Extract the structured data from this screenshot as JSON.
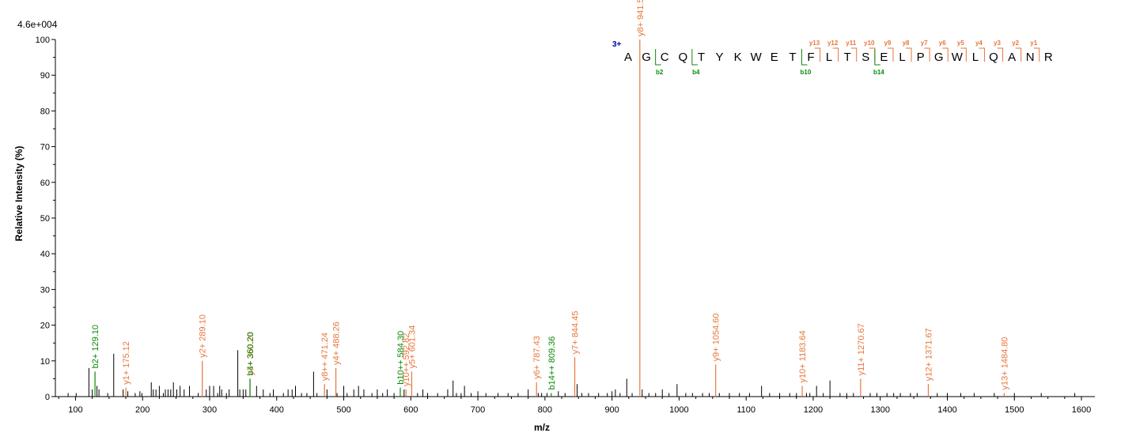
{
  "colors": {
    "y_ion": "#e8763a",
    "b_ion": "#0a8a0a",
    "noise": "#000000",
    "charge": "#0000b0",
    "axis": "#000000"
  },
  "chart_data": {
    "type": "bar",
    "scale_label": "4.6e+004",
    "xlabel": "m/z",
    "ylabel": "Relative   Intensity (%)",
    "xlim": [
      70,
      1620
    ],
    "ylim": [
      0,
      100
    ],
    "xticks": [
      100,
      200,
      300,
      400,
      500,
      600,
      700,
      800,
      900,
      1000,
      1100,
      1200,
      1300,
      1400,
      1500,
      1600
    ],
    "yticks": [
      0,
      10,
      20,
      30,
      40,
      50,
      60,
      70,
      80,
      90,
      100
    ],
    "annotated_peaks": [
      {
        "mz": 129.1,
        "intensity": 7,
        "label": "b2+ 129.10",
        "ion": "b"
      },
      {
        "mz": 175.12,
        "intensity": 2.5,
        "label": "y1+ 175.12",
        "ion": "y"
      },
      {
        "mz": 289.1,
        "intensity": 10,
        "label": "y2+ 289.10",
        "ion": "y"
      },
      {
        "mz": 360.2,
        "intensity": 5,
        "label": "y3+ 360.20",
        "ion": "y"
      },
      {
        "mz": 360.2,
        "intensity": 5,
        "label": "b4+ 360.20",
        "ion": "b"
      },
      {
        "mz": 471.24,
        "intensity": 3.5,
        "label": "y8++ 471.24",
        "ion": "y"
      },
      {
        "mz": 488.26,
        "intensity": 8,
        "label": "y4+ 488.26",
        "ion": "y"
      },
      {
        "mz": 584.3,
        "intensity": 2.5,
        "label": "b10++ 584.30",
        "ion": "b"
      },
      {
        "mz": 592.82,
        "intensity": 2,
        "label": "y10++ 592.82",
        "ion": "y"
      },
      {
        "mz": 601.34,
        "intensity": 7,
        "label": "y5+ 601.34",
        "ion": "y"
      },
      {
        "mz": 787.43,
        "intensity": 4,
        "label": "y6+ 787.43",
        "ion": "y"
      },
      {
        "mz": 809.36,
        "intensity": 1,
        "label": "b14++ 809.36",
        "ion": "b"
      },
      {
        "mz": 844.45,
        "intensity": 11,
        "label": "y7+ 844.45",
        "ion": "y"
      },
      {
        "mz": 941.5,
        "intensity": 100,
        "label": "y8+ 941.50",
        "ion": "y"
      },
      {
        "mz": 1054.6,
        "intensity": 9,
        "label": "y9+ 1054.60",
        "ion": "y"
      },
      {
        "mz": 1183.64,
        "intensity": 3,
        "label": "y10+ 1183.64",
        "ion": "y"
      },
      {
        "mz": 1270.67,
        "intensity": 5,
        "label": "y11+ 1270.67",
        "ion": "y"
      },
      {
        "mz": 1371.67,
        "intensity": 3.5,
        "label": "y12+ 1371.67",
        "ion": "y"
      },
      {
        "mz": 1484.8,
        "intensity": 1,
        "label": "y13+ 1484.80",
        "ion": "y"
      }
    ],
    "noise_peaks": [
      [
        89,
        1
      ],
      [
        101,
        1
      ],
      [
        120,
        8
      ],
      [
        125,
        2
      ],
      [
        132,
        3
      ],
      [
        135,
        2
      ],
      [
        148,
        1
      ],
      [
        157,
        12
      ],
      [
        171,
        2
      ],
      [
        178,
        1.5
      ],
      [
        189,
        1
      ],
      [
        196,
        1.5
      ],
      [
        199,
        1
      ],
      [
        213,
        4
      ],
      [
        216,
        2
      ],
      [
        220,
        2
      ],
      [
        225,
        3
      ],
      [
        231,
        1
      ],
      [
        234,
        2
      ],
      [
        238,
        2
      ],
      [
        242,
        2
      ],
      [
        246,
        4
      ],
      [
        251,
        2
      ],
      [
        256,
        3
      ],
      [
        262,
        2
      ],
      [
        270,
        3
      ],
      [
        283,
        1
      ],
      [
        295,
        2
      ],
      [
        300,
        3
      ],
      [
        306,
        3
      ],
      [
        312,
        1
      ],
      [
        315,
        3
      ],
      [
        318,
        2
      ],
      [
        325,
        1
      ],
      [
        329,
        2
      ],
      [
        342,
        13
      ],
      [
        345,
        2
      ],
      [
        350,
        2
      ],
      [
        354,
        2
      ],
      [
        370,
        3
      ],
      [
        380,
        2
      ],
      [
        390,
        1
      ],
      [
        395,
        2
      ],
      [
        410,
        1
      ],
      [
        417,
        2
      ],
      [
        423,
        2
      ],
      [
        428,
        3
      ],
      [
        437,
        1
      ],
      [
        445,
        1
      ],
      [
        455,
        7
      ],
      [
        460,
        1
      ],
      [
        475,
        2
      ],
      [
        490,
        1
      ],
      [
        500,
        3
      ],
      [
        505,
        1
      ],
      [
        515,
        2
      ],
      [
        522,
        3
      ],
      [
        530,
        2
      ],
      [
        542,
        1
      ],
      [
        550,
        2
      ],
      [
        558,
        1
      ],
      [
        565,
        2
      ],
      [
        575,
        1
      ],
      [
        590,
        2
      ],
      [
        610,
        1
      ],
      [
        618,
        2
      ],
      [
        625,
        1
      ],
      [
        640,
        1
      ],
      [
        655,
        2
      ],
      [
        663,
        4.5
      ],
      [
        668,
        1
      ],
      [
        675,
        1
      ],
      [
        680,
        3
      ],
      [
        690,
        1
      ],
      [
        700,
        1.5
      ],
      [
        712,
        1
      ],
      [
        730,
        1
      ],
      [
        745,
        1
      ],
      [
        760,
        1
      ],
      [
        775,
        2
      ],
      [
        790,
        1
      ],
      [
        795,
        1
      ],
      [
        803,
        1
      ],
      [
        820,
        1.5
      ],
      [
        830,
        1
      ],
      [
        848,
        3.5
      ],
      [
        855,
        1
      ],
      [
        865,
        1
      ],
      [
        880,
        1
      ],
      [
        893,
        1
      ],
      [
        900,
        1.5
      ],
      [
        905,
        2
      ],
      [
        912,
        1
      ],
      [
        922,
        5
      ],
      [
        930,
        1
      ],
      [
        945,
        2
      ],
      [
        955,
        1
      ],
      [
        965,
        1
      ],
      [
        975,
        2
      ],
      [
        985,
        1
      ],
      [
        997,
        3.5
      ],
      [
        1010,
        1
      ],
      [
        1020,
        1
      ],
      [
        1035,
        1
      ],
      [
        1045,
        1
      ],
      [
        1060,
        1
      ],
      [
        1075,
        1
      ],
      [
        1090,
        1
      ],
      [
        1105,
        1
      ],
      [
        1123,
        3
      ],
      [
        1135,
        1
      ],
      [
        1150,
        1
      ],
      [
        1165,
        1
      ],
      [
        1175,
        1
      ],
      [
        1190,
        1
      ],
      [
        1195,
        1
      ],
      [
        1205,
        3
      ],
      [
        1215,
        1
      ],
      [
        1225,
        4.5
      ],
      [
        1240,
        1
      ],
      [
        1250,
        1
      ],
      [
        1260,
        1
      ],
      [
        1285,
        1
      ],
      [
        1295,
        1
      ],
      [
        1310,
        1
      ],
      [
        1320,
        1
      ],
      [
        1330,
        1
      ],
      [
        1345,
        1
      ],
      [
        1355,
        1
      ],
      [
        1385,
        1
      ],
      [
        1400,
        1
      ],
      [
        1420,
        1
      ],
      [
        1440,
        1
      ],
      [
        1470,
        1
      ],
      [
        1500,
        1
      ],
      [
        1540,
        1
      ],
      [
        1590,
        1
      ]
    ]
  },
  "sequence": {
    "charge": "3+",
    "residues": [
      "A",
      "G",
      "C",
      "Q",
      "T",
      "Y",
      "K",
      "W",
      "E",
      "T",
      "F",
      "L",
      "T",
      "S",
      "E",
      "L",
      "P",
      "G",
      "W",
      "L",
      "Q",
      "A",
      "N",
      "R"
    ],
    "y_ions": [
      {
        "label": "y13",
        "after": 10
      },
      {
        "label": "y12",
        "after": 11
      },
      {
        "label": "y11",
        "after": 12
      },
      {
        "label": "y10",
        "after": 13
      },
      {
        "label": "y9",
        "after": 14
      },
      {
        "label": "y8",
        "after": 15
      },
      {
        "label": "y7",
        "after": 16
      },
      {
        "label": "y6",
        "after": 17
      },
      {
        "label": "y5",
        "after": 18
      },
      {
        "label": "y4",
        "after": 19
      },
      {
        "label": "y3",
        "after": 20
      },
      {
        "label": "y2",
        "after": 21
      },
      {
        "label": "y1",
        "after": 22
      }
    ],
    "b_ions": [
      {
        "label": "b2",
        "after": 1
      },
      {
        "label": "b4",
        "after": 3
      },
      {
        "label": "b10",
        "after": 9
      },
      {
        "label": "b14",
        "after": 13
      }
    ]
  }
}
